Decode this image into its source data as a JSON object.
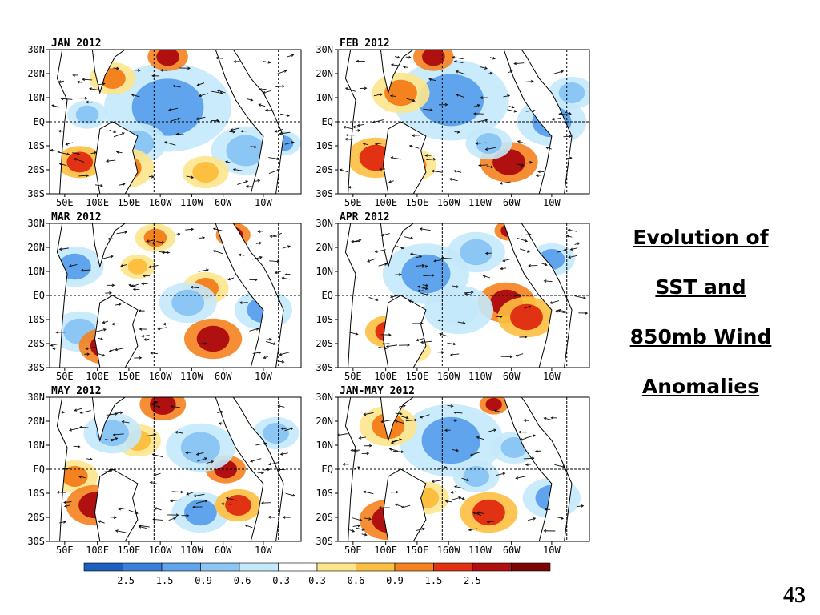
{
  "title": {
    "lines": [
      "Evolution of",
      "SST and",
      "850mb Wind",
      "Anomalies"
    ]
  },
  "slide_number": "43",
  "map_axes": {
    "lat_labels": [
      "30N",
      "20N",
      "10N",
      "EQ",
      "10S",
      "20S",
      "30S"
    ],
    "lon_labels": [
      "50E",
      "100E",
      "150E",
      "160W",
      "110W",
      "60W",
      "10W"
    ]
  },
  "panels": [
    {
      "title": "JAN 2012"
    },
    {
      "title": "FEB 2012"
    },
    {
      "title": "MAR 2012"
    },
    {
      "title": "APR 2012"
    },
    {
      "title": "MAY 2012"
    },
    {
      "title": "JAN-MAY 2012"
    }
  ],
  "colorbar": {
    "labels": [
      "-2.5",
      "-1.5",
      "-0.9",
      "-0.6",
      "-0.3",
      "0.3",
      "0.6",
      "0.9",
      "1.5",
      "2.5"
    ],
    "colors": [
      "#1c5fbf",
      "#3a80d8",
      "#5fa4ec",
      "#8cc6f4",
      "#c4e9fb",
      "#ffffff",
      "#fde58c",
      "#fdbf40",
      "#f4821e",
      "#e13214",
      "#b01010",
      "#7a0606"
    ]
  }
}
